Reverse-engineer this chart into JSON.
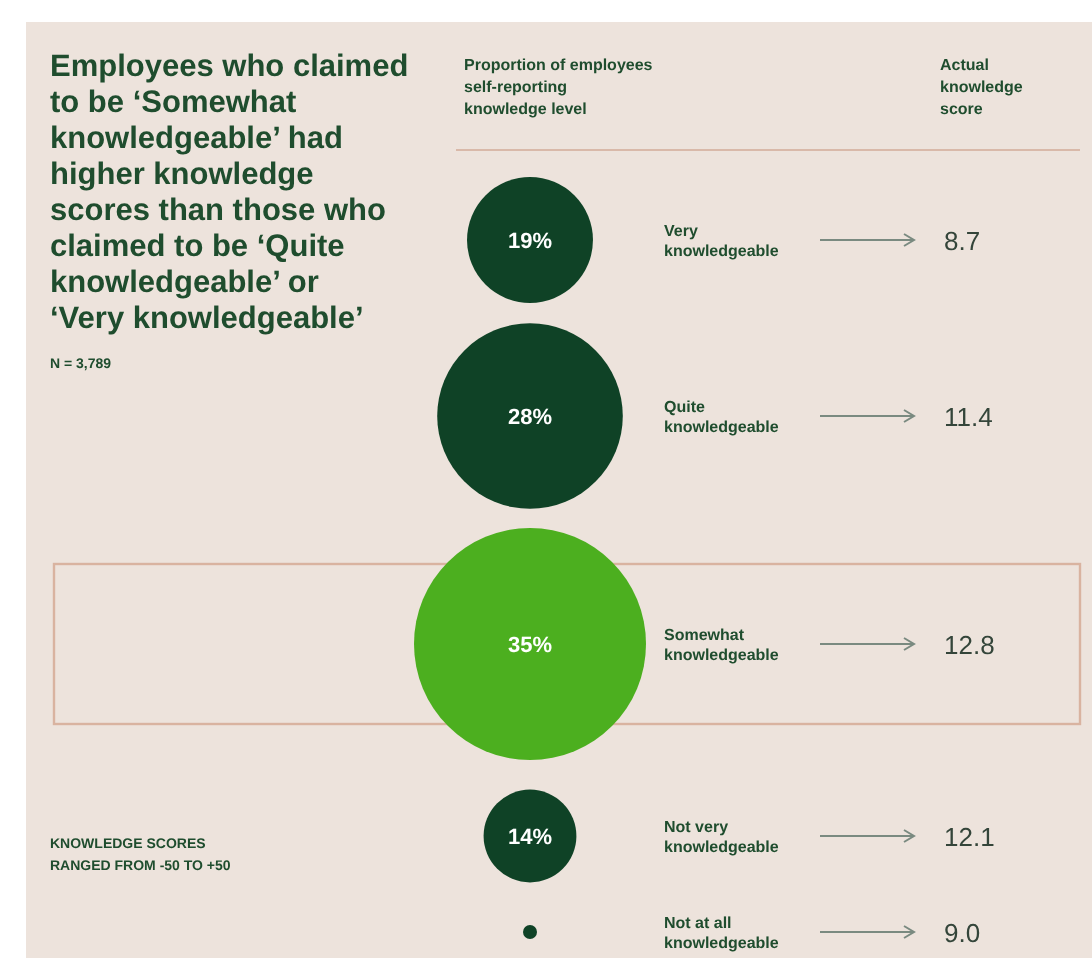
{
  "chart_data": {
    "type": "other",
    "title": "Employees who claimed to be ‘Somewhat knowledgeable’ had higher knowledge scores than those who claimed to be ‘Quite knowledgeable’ or ‘Very knowledgeable’",
    "subtitle": "N = 3,789",
    "categories": [
      "Very knowledgeable",
      "Quite knowledgeable",
      "Somewhat knowledgeable",
      "Not very knowledgeable",
      "Not at all knowledgeable"
    ],
    "series": [
      {
        "name": "Proportion of employees self-reporting knowledge level",
        "values": [
          19,
          28,
          35,
          14,
          null
        ],
        "value_labels": [
          "19%",
          "28%",
          "35%",
          "14%",
          null
        ],
        "colors": [
          "#0f4226",
          "#0f4226",
          "#4caf1f",
          "#0f4226",
          "#0f4226"
        ]
      },
      {
        "name": "Actual knowledge score",
        "values": [
          8.7,
          11.4,
          12.8,
          12.1,
          9.0
        ],
        "value_labels": [
          "8.7",
          "11.4",
          "12.8",
          "12.1",
          "9.0"
        ],
        "color": "#34453a"
      }
    ],
    "annotations": [
      "KNOWLEDGE SCORES RANGED FROM -50 TO +50"
    ]
  }
}
